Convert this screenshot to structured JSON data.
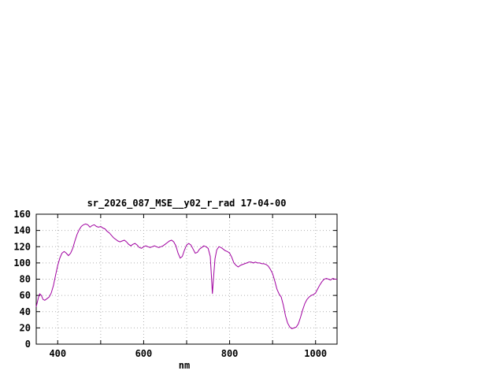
{
  "chart_data": {
    "type": "line",
    "title": "sr_2026_087_MSE__y02_r_rad 17-04-00",
    "xlabel": "nm",
    "ylabel": "",
    "xlim": [
      350,
      1050
    ],
    "ylim": [
      0,
      160
    ],
    "x_major_ticks": [
      400,
      600,
      800,
      1000
    ],
    "x_grid_ticks": [
      400,
      500,
      600,
      700,
      800,
      900,
      1000
    ],
    "y_ticks": [
      0,
      20,
      40,
      60,
      80,
      100,
      120,
      140,
      160
    ],
    "grid": true,
    "legend": "none",
    "line_color": "#a000a0",
    "grid_color": "#b0b0b0",
    "frame_color": "#000000",
    "series": [
      {
        "name": "sr_2026_087_MSE__y02_r_rad",
        "points": [
          [
            350,
            46
          ],
          [
            355,
            57
          ],
          [
            358,
            62
          ],
          [
            362,
            60
          ],
          [
            366,
            55
          ],
          [
            370,
            54
          ],
          [
            375,
            56
          ],
          [
            380,
            58
          ],
          [
            385,
            63
          ],
          [
            390,
            72
          ],
          [
            395,
            85
          ],
          [
            400,
            97
          ],
          [
            405,
            106
          ],
          [
            410,
            112
          ],
          [
            415,
            114
          ],
          [
            420,
            112
          ],
          [
            425,
            109
          ],
          [
            430,
            112
          ],
          [
            435,
            118
          ],
          [
            440,
            127
          ],
          [
            445,
            135
          ],
          [
            450,
            141
          ],
          [
            455,
            145
          ],
          [
            460,
            147
          ],
          [
            465,
            148
          ],
          [
            470,
            147
          ],
          [
            475,
            144
          ],
          [
            480,
            146
          ],
          [
            485,
            147
          ],
          [
            490,
            145
          ],
          [
            495,
            144
          ],
          [
            500,
            145
          ],
          [
            505,
            143
          ],
          [
            510,
            142
          ],
          [
            515,
            139
          ],
          [
            520,
            137
          ],
          [
            525,
            134
          ],
          [
            530,
            131
          ],
          [
            535,
            129
          ],
          [
            540,
            127
          ],
          [
            545,
            126
          ],
          [
            550,
            127
          ],
          [
            555,
            128
          ],
          [
            560,
            126
          ],
          [
            565,
            123
          ],
          [
            570,
            121
          ],
          [
            575,
            123
          ],
          [
            580,
            124
          ],
          [
            585,
            122
          ],
          [
            590,
            119
          ],
          [
            595,
            118
          ],
          [
            600,
            120
          ],
          [
            605,
            121
          ],
          [
            610,
            120
          ],
          [
            615,
            119
          ],
          [
            620,
            120
          ],
          [
            625,
            121
          ],
          [
            630,
            120
          ],
          [
            635,
            119
          ],
          [
            640,
            120
          ],
          [
            645,
            121
          ],
          [
            650,
            123
          ],
          [
            655,
            125
          ],
          [
            660,
            127
          ],
          [
            665,
            128
          ],
          [
            670,
            126
          ],
          [
            675,
            121
          ],
          [
            680,
            112
          ],
          [
            685,
            106
          ],
          [
            690,
            108
          ],
          [
            695,
            116
          ],
          [
            700,
            122
          ],
          [
            705,
            124
          ],
          [
            710,
            122
          ],
          [
            715,
            117
          ],
          [
            720,
            112
          ],
          [
            725,
            113
          ],
          [
            730,
            117
          ],
          [
            735,
            119
          ],
          [
            740,
            121
          ],
          [
            745,
            120
          ],
          [
            750,
            118
          ],
          [
            755,
            108
          ],
          [
            758,
            80
          ],
          [
            760,
            62
          ],
          [
            763,
            85
          ],
          [
            766,
            105
          ],
          [
            770,
            116
          ],
          [
            775,
            120
          ],
          [
            780,
            119
          ],
          [
            785,
            117
          ],
          [
            790,
            115
          ],
          [
            795,
            114
          ],
          [
            800,
            112
          ],
          [
            805,
            107
          ],
          [
            810,
            100
          ],
          [
            815,
            97
          ],
          [
            820,
            95
          ],
          [
            825,
            97
          ],
          [
            830,
            98
          ],
          [
            835,
            99
          ],
          [
            840,
            100
          ],
          [
            845,
            101
          ],
          [
            850,
            101
          ],
          [
            855,
            100
          ],
          [
            860,
            101
          ],
          [
            865,
            100
          ],
          [
            870,
            100
          ],
          [
            875,
            99
          ],
          [
            880,
            99
          ],
          [
            885,
            98
          ],
          [
            890,
            96
          ],
          [
            895,
            92
          ],
          [
            900,
            87
          ],
          [
            905,
            78
          ],
          [
            910,
            68
          ],
          [
            915,
            62
          ],
          [
            920,
            58
          ],
          [
            925,
            48
          ],
          [
            930,
            35
          ],
          [
            935,
            26
          ],
          [
            940,
            21
          ],
          [
            945,
            19
          ],
          [
            950,
            20
          ],
          [
            955,
            21
          ],
          [
            960,
            25
          ],
          [
            965,
            33
          ],
          [
            970,
            42
          ],
          [
            975,
            50
          ],
          [
            980,
            55
          ],
          [
            985,
            58
          ],
          [
            990,
            60
          ],
          [
            995,
            61
          ],
          [
            1000,
            63
          ],
          [
            1005,
            68
          ],
          [
            1010,
            73
          ],
          [
            1015,
            77
          ],
          [
            1020,
            80
          ],
          [
            1025,
            81
          ],
          [
            1030,
            80
          ],
          [
            1035,
            79
          ],
          [
            1040,
            81
          ],
          [
            1045,
            80
          ],
          [
            1050,
            80
          ]
        ]
      }
    ]
  }
}
